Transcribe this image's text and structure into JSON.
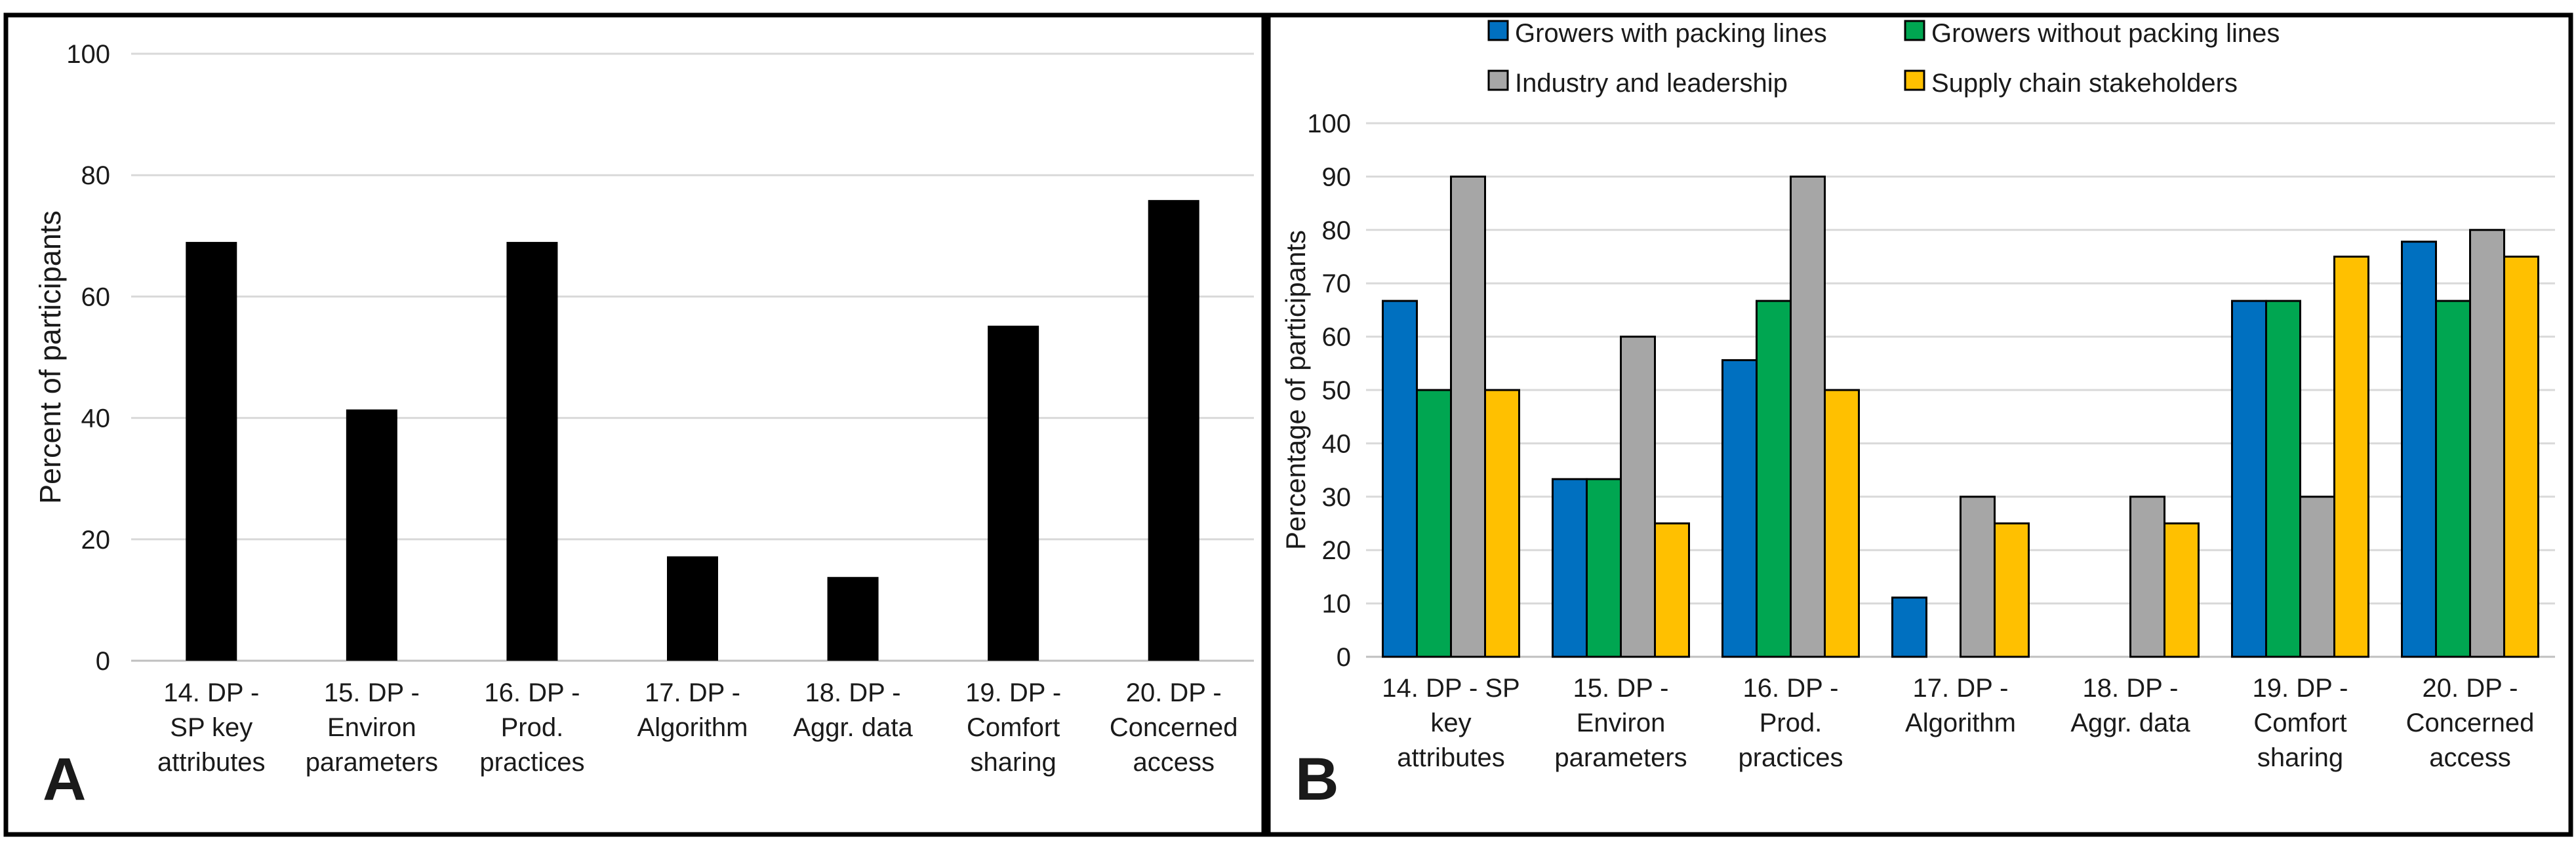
{
  "chart_data": [
    {
      "panel_label": "A",
      "type": "bar",
      "categories": [
        [
          "14. DP -",
          "SP key",
          "attributes"
        ],
        [
          "15. DP -",
          "Environ",
          "parameters"
        ],
        [
          "16. DP -",
          "Prod.",
          "practices"
        ],
        [
          "17. DP -",
          "Algorithm"
        ],
        [
          "18. DP -",
          "Aggr. data"
        ],
        [
          "19. DP -",
          "Comfort",
          "sharing"
        ],
        [
          "20. DP -",
          "Concerned",
          "access"
        ]
      ],
      "series": [
        {
          "name": "Percent of participants",
          "values": [
            69,
            41.4,
            69,
            17.2,
            13.8,
            55.2,
            75.9
          ]
        }
      ],
      "colors": [
        "#000000"
      ],
      "title": "",
      "xlabel": "",
      "ylabel": "Percent of participants",
      "ylim": [
        0,
        100
      ],
      "yticks": [
        0,
        20,
        40,
        60,
        80,
        100
      ],
      "grid": true,
      "legend": "none"
    },
    {
      "panel_label": "B",
      "type": "bar",
      "categories": [
        [
          "14. DP - SP",
          "key",
          "attributes"
        ],
        [
          "15. DP -",
          "Environ",
          "parameters"
        ],
        [
          "16. DP -",
          "Prod.",
          "practices"
        ],
        [
          "17. DP -",
          "Algorithm"
        ],
        [
          "18. DP -",
          "Aggr. data"
        ],
        [
          "19. DP -",
          "Comfort",
          "sharing"
        ],
        [
          "20. DP -",
          "Concerned",
          "access"
        ]
      ],
      "series": [
        {
          "name": "Growers with packing lines",
          "color": "#0070C0",
          "values": [
            66.7,
            33.3,
            55.6,
            11.1,
            0,
            66.7,
            77.8
          ]
        },
        {
          "name": "Growers without packing lines",
          "color": "#00A651",
          "values": [
            50,
            33.3,
            66.7,
            0,
            0,
            66.7,
            66.7
          ]
        },
        {
          "name": "Industry and leadership",
          "color": "#A6A6A6",
          "values": [
            90,
            60,
            90,
            30,
            30,
            30,
            80
          ]
        },
        {
          "name": "Supply chain stakeholders",
          "color": "#FFC000",
          "values": [
            50,
            25,
            50,
            25,
            25,
            75,
            75
          ]
        }
      ],
      "title": "",
      "xlabel": "",
      "ylabel": "Percentage of participants",
      "ylim": [
        0,
        100
      ],
      "yticks": [
        0,
        10,
        20,
        30,
        40,
        50,
        60,
        70,
        80,
        90,
        100
      ],
      "grid": true,
      "legend": "top"
    }
  ]
}
